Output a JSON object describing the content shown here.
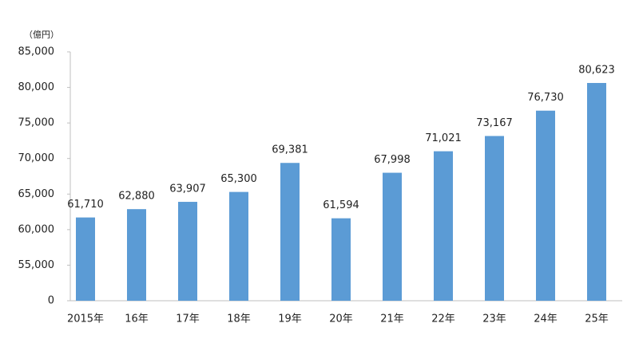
{
  "chart_data": {
    "type": "bar",
    "unit_label": "（億円）",
    "categories": [
      "2015年",
      "16年",
      "17年",
      "18年",
      "19年",
      "20年",
      "21年",
      "22年",
      "23年",
      "24年",
      "25年"
    ],
    "values": [
      61710,
      62880,
      63907,
      65300,
      69381,
      61594,
      67998,
      71021,
      73167,
      76730,
      80623
    ],
    "value_labels": [
      "61,710",
      "62,880",
      "63,907",
      "65,300",
      "69,381",
      "61,594",
      "67,998",
      "71,021",
      "73,167",
      "76,730",
      "80,623"
    ],
    "color": "#5b9bd5",
    "ylim": [
      0,
      85000
    ],
    "axis_break": [
      0,
      50000
    ],
    "yticks": [
      0,
      {
        "value": 55000,
        "label": "55,000"
      },
      {
        "value": 60000,
        "label": "60,000"
      },
      {
        "value": 65000,
        "label": "65,000"
      },
      {
        "value": 70000,
        "label": "70,000"
      },
      {
        "value": 75000,
        "label": "75,000"
      },
      {
        "value": 80000,
        "label": "80,000"
      },
      {
        "value": 85000,
        "label": "85,000"
      }
    ],
    "grid": false
  }
}
